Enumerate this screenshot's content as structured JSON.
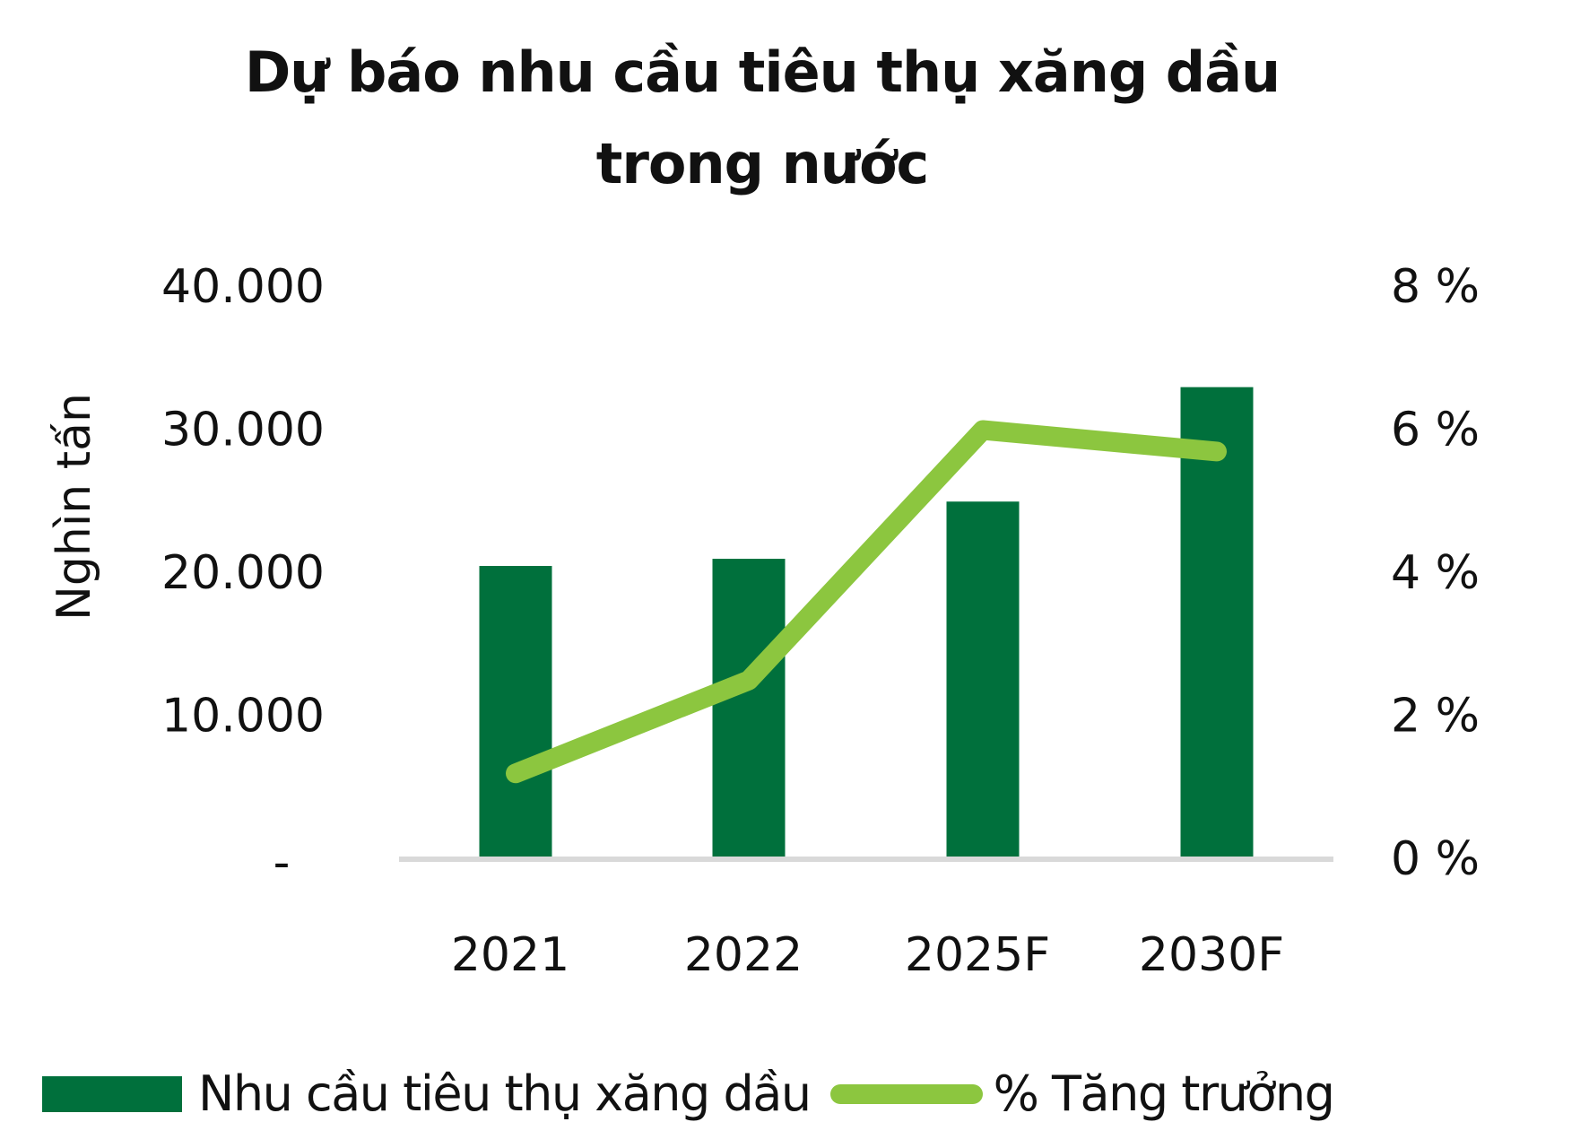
{
  "title": {
    "line1": "Dự báo nhu cầu tiêu thụ xăng dầu",
    "line2": "trong nước"
  },
  "axes": {
    "y_left_title": "Nghìn tấn",
    "y_left_ticks": [
      "-",
      "10.000",
      "20.000",
      "30.000",
      "40.000"
    ],
    "y_right_ticks": [
      "0 %",
      "2 %",
      "4 %",
      "6 %",
      "8 %"
    ],
    "x_ticks": [
      "2021",
      "2022",
      "2025F",
      "2030F"
    ]
  },
  "legend": {
    "bar_label": "Nhu cầu tiêu thụ xăng dầu",
    "line_label": "% Tăng trưởng"
  },
  "colors": {
    "bar": "#00703C",
    "line": "#8CC63F",
    "axis": "#D9D9D9",
    "text": "#111111"
  },
  "chart_data": {
    "type": "bar",
    "title": "Dự báo nhu cầu tiêu thụ xăng dầu trong nước",
    "categories": [
      "2021",
      "2022",
      "2025F",
      "2030F"
    ],
    "series": [
      {
        "name": "Nhu cầu tiêu thụ xăng dầu",
        "type": "bar",
        "axis": "left",
        "values": [
          20500,
          21000,
          25000,
          33000
        ]
      },
      {
        "name": "% Tăng trưởng",
        "type": "line",
        "axis": "right",
        "values": [
          1.2,
          2.5,
          6.0,
          5.7
        ]
      }
    ],
    "xlabel": "",
    "ylabel": "Nghìn tấn",
    "ylim": [
      0,
      40000
    ],
    "y2label": "",
    "y2lim": [
      0,
      8
    ],
    "y_ticks": [
      0,
      10000,
      20000,
      30000,
      40000
    ],
    "y2_ticks": [
      0,
      2,
      4,
      6,
      8
    ],
    "grid": false,
    "legend_position": "bottom"
  }
}
